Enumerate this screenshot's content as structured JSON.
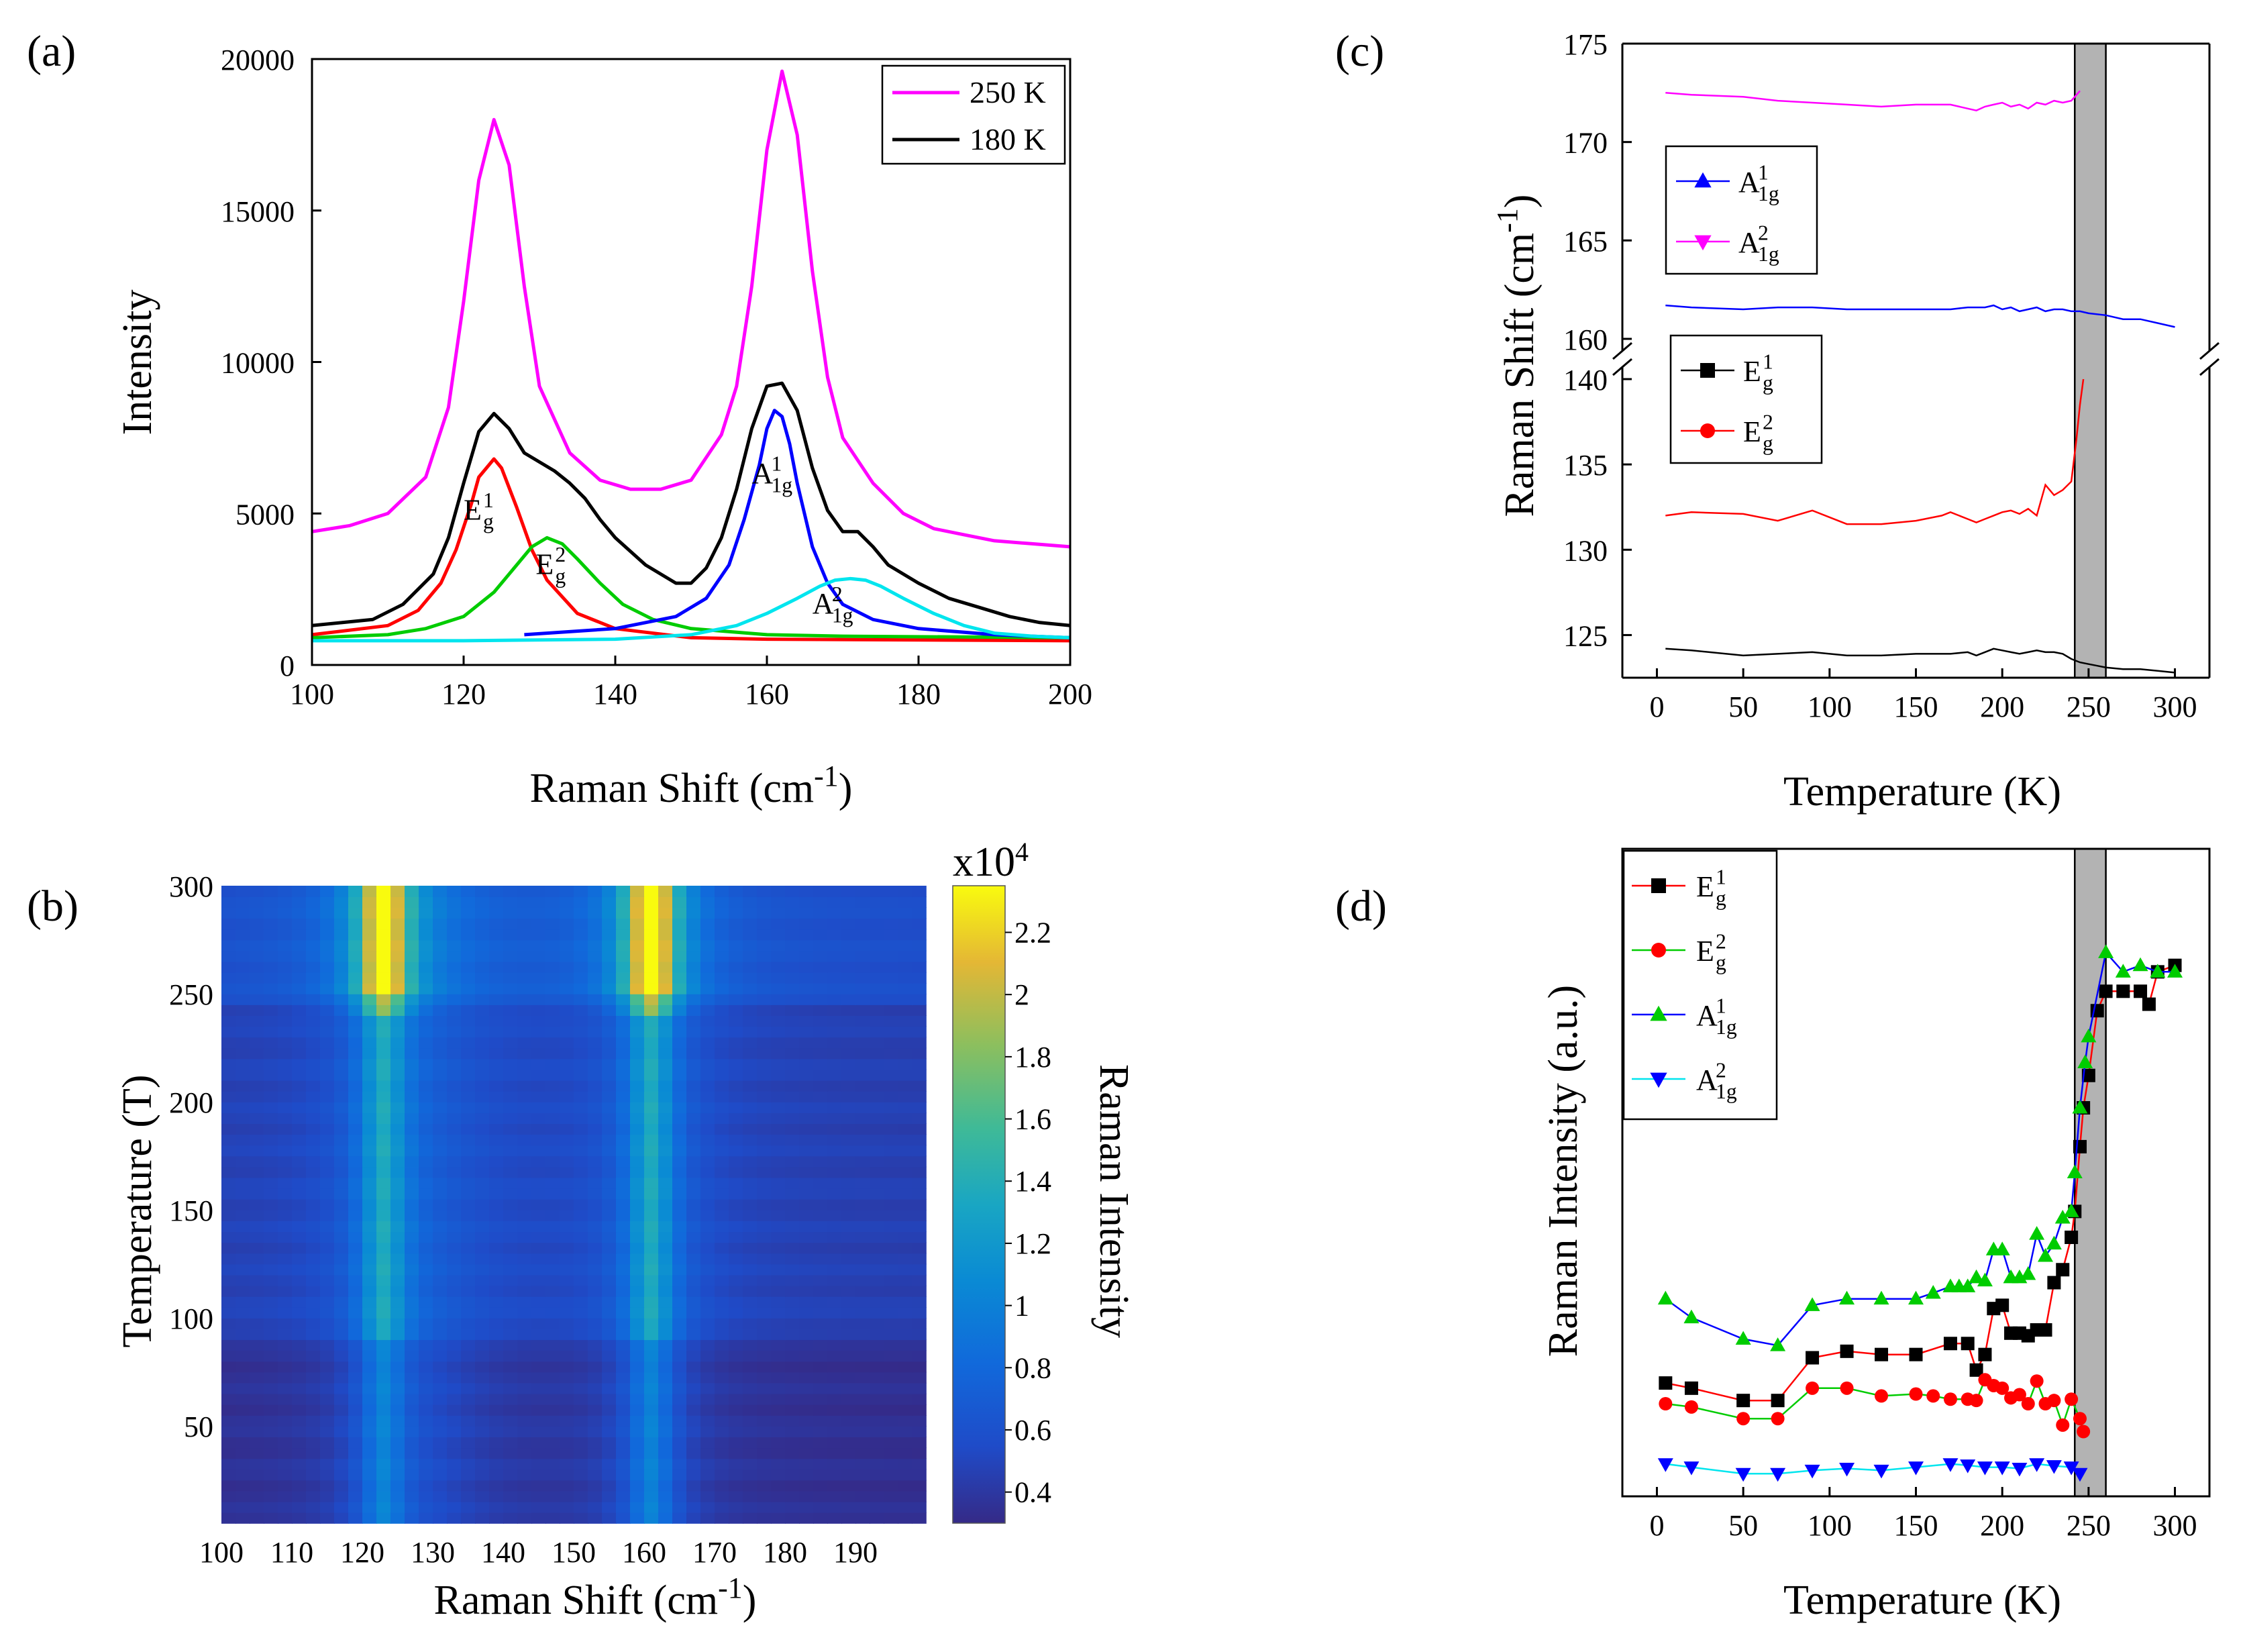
{
  "panels": {
    "a": "(a)",
    "b": "(b)",
    "c": "(c)",
    "d": "(d)"
  },
  "colors": {
    "k250": "#ff00ff",
    "k180": "#000000",
    "Eg1": "#ff0000",
    "Eg2": "#00cc00",
    "A1g1": "#0000ff",
    "A1g2": "#00e5ee",
    "band": "#b3b3b3"
  },
  "chart_data": [
    {
      "id": "a",
      "type": "line",
      "xlabel": "Raman Shift (cm-1)",
      "xlabel_main": "Raman Shift (cm",
      "xlabel_sup": "-1",
      "xlabel_close": ")",
      "ylabel": "Intensity",
      "xlim": [
        100,
        200
      ],
      "ylim": [
        0,
        20000
      ],
      "xticks": [
        100,
        120,
        140,
        160,
        180,
        200
      ],
      "yticks": [
        0,
        5000,
        10000,
        15000,
        20000
      ],
      "legend": [
        "250 K",
        "180 K"
      ],
      "series": [
        {
          "name": "250 K",
          "x": [
            100,
            105,
            110,
            115,
            118,
            120,
            122,
            124,
            126,
            128,
            130,
            134,
            138,
            142,
            146,
            150,
            154,
            156,
            158,
            160,
            162,
            164,
            166,
            168,
            170,
            174,
            178,
            182,
            186,
            190,
            195,
            200
          ],
          "y": [
            4400,
            4600,
            5000,
            6200,
            8500,
            12000,
            16000,
            18000,
            16500,
            12500,
            9200,
            7000,
            6100,
            5800,
            5800,
            6100,
            7600,
            9200,
            12500,
            17000,
            19600,
            17500,
            13000,
            9500,
            7500,
            6000,
            5000,
            4500,
            4300,
            4100,
            4000,
            3900
          ]
        },
        {
          "name": "180 K",
          "x": [
            100,
            104,
            108,
            112,
            116,
            118,
            120,
            122,
            124,
            126,
            128,
            130,
            132,
            134,
            136,
            138,
            140,
            144,
            148,
            150,
            152,
            154,
            156,
            158,
            160,
            162,
            164,
            166,
            168,
            170,
            172,
            174,
            176,
            180,
            184,
            188,
            192,
            196,
            200
          ],
          "y": [
            1300,
            1400,
            1500,
            2000,
            3000,
            4200,
            6000,
            7700,
            8300,
            7800,
            7000,
            6700,
            6400,
            6000,
            5500,
            4800,
            4200,
            3300,
            2700,
            2700,
            3200,
            4200,
            5800,
            7800,
            9200,
            9300,
            8400,
            6500,
            5100,
            4400,
            4400,
            3900,
            3300,
            2700,
            2200,
            1900,
            1600,
            1400,
            1300
          ]
        },
        {
          "name": "Eg1 fit",
          "x": [
            100,
            110,
            114,
            117,
            119,
            121,
            122,
            124,
            125,
            127,
            129,
            131,
            135,
            140,
            150,
            160,
            200
          ],
          "y": [
            1000,
            1300,
            1800,
            2700,
            3800,
            5300,
            6200,
            6800,
            6500,
            5200,
            3800,
            2800,
            1700,
            1200,
            900,
            850,
            800
          ]
        },
        {
          "name": "Eg2 fit",
          "x": [
            100,
            110,
            115,
            120,
            124,
            127,
            129,
            131,
            133,
            135,
            138,
            141,
            145,
            150,
            160,
            170,
            200
          ],
          "y": [
            900,
            1000,
            1200,
            1600,
            2400,
            3300,
            3900,
            4200,
            4000,
            3500,
            2700,
            2000,
            1500,
            1200,
            1000,
            950,
            900
          ]
        },
        {
          "name": "A1g1 fit",
          "x": [
            128,
            140,
            148,
            152,
            155,
            157,
            159,
            160,
            161,
            162,
            163,
            164,
            166,
            168,
            170,
            174,
            180,
            190,
            200
          ],
          "y": [
            1000,
            1200,
            1600,
            2200,
            3300,
            4800,
            6600,
            7800,
            8400,
            8200,
            7300,
            6000,
            3900,
            2700,
            2000,
            1500,
            1200,
            1000,
            900
          ]
        },
        {
          "name": "A1g2 fit",
          "x": [
            100,
            120,
            140,
            150,
            156,
            160,
            164,
            167,
            169,
            171,
            173,
            175,
            178,
            182,
            186,
            190,
            195,
            200
          ],
          "y": [
            800,
            800,
            850,
            1000,
            1300,
            1700,
            2200,
            2600,
            2800,
            2850,
            2800,
            2600,
            2200,
            1700,
            1300,
            1050,
            950,
            900
          ]
        }
      ],
      "annotations": [
        {
          "main": "E",
          "sup": "1",
          "sub": "g",
          "x": 120,
          "y": 4800
        },
        {
          "main": "E",
          "sup": "2",
          "sub": "g",
          "x": 129.5,
          "y": 3000
        },
        {
          "main": "A",
          "sup": "1",
          "sub": "1g",
          "x": 158,
          "y": 6000
        },
        {
          "main": "A",
          "sup": "2",
          "sub": "1g",
          "x": 166,
          "y": 1700
        }
      ]
    },
    {
      "id": "b",
      "type": "heatmap",
      "xlabel": "Raman Shift (cm-1)",
      "xlabel_main": "Raman Shift (cm",
      "xlabel_sup": "-1",
      "xlabel_close": ")",
      "ylabel": "Temperature (T)",
      "xlim": [
        100,
        200
      ],
      "ylim": [
        5,
        300
      ],
      "xticks": [
        100,
        110,
        120,
        130,
        140,
        150,
        160,
        170,
        180,
        190
      ],
      "yticks": [
        50,
        100,
        150,
        200,
        250,
        300
      ],
      "peaks": [
        123,
        161
      ],
      "colorbar": {
        "label": "Raman Intensity",
        "exponent_label": "x10",
        "exponent_sup": "4",
        "range": [
          0.3,
          2.35
        ],
        "ticks": [
          "0.4",
          "0.6",
          "0.8",
          "1",
          "1.2",
          "1.4",
          "1.6",
          "1.8",
          "2",
          "2.2"
        ]
      }
    },
    {
      "id": "c",
      "type": "scatter",
      "xlabel": "Temperature (K)",
      "ylabel": "Raman Shift (cm-1)",
      "ylabel_main": "Raman Shift (cm",
      "ylabel_sup": "-1",
      "ylabel_close": ")",
      "xlim": [
        -20,
        320
      ],
      "xticks": [
        0,
        50,
        100,
        150,
        200,
        250,
        300
      ],
      "ylim_upper": [
        160,
        175
      ],
      "yticks_upper": [
        160,
        165,
        170,
        175
      ],
      "ylim_lower": [
        122.5,
        140
      ],
      "yticks_lower": [
        125,
        130,
        135,
        140
      ],
      "band": [
        242,
        260
      ],
      "series": [
        {
          "name": "A1g1",
          "label_main": "A",
          "label_sup": "1",
          "label_sub": "1g",
          "marker": "triangle-up",
          "x": [
            5,
            20,
            50,
            70,
            90,
            110,
            130,
            150,
            170,
            180,
            190,
            195,
            200,
            205,
            210,
            215,
            220,
            225,
            230,
            235,
            240,
            245,
            250,
            260,
            270,
            280,
            290,
            300
          ],
          "y": [
            161.7,
            161.6,
            161.5,
            161.6,
            161.6,
            161.5,
            161.5,
            161.5,
            161.5,
            161.6,
            161.6,
            161.7,
            161.5,
            161.6,
            161.4,
            161.5,
            161.6,
            161.4,
            161.5,
            161.5,
            161.4,
            161.4,
            161.3,
            161.2,
            161.0,
            161.0,
            160.8,
            160.6
          ]
        },
        {
          "name": "A1g2",
          "label_main": "A",
          "label_sup": "2",
          "label_sub": "1g",
          "marker": "triangle-down",
          "x": [
            5,
            20,
            50,
            70,
            90,
            110,
            130,
            150,
            170,
            180,
            185,
            190,
            195,
            200,
            205,
            210,
            215,
            220,
            225,
            230,
            235,
            240,
            245
          ],
          "y": [
            172.5,
            172.4,
            172.3,
            172.1,
            172.0,
            171.9,
            171.8,
            171.9,
            171.9,
            171.7,
            171.6,
            171.8,
            171.9,
            172.0,
            171.8,
            171.9,
            171.7,
            172.0,
            171.9,
            172.1,
            172.0,
            172.1,
            172.6
          ]
        },
        {
          "name": "Eg1",
          "label_main": "E",
          "label_sup": "1",
          "label_sub": "g",
          "marker": "square",
          "x": [
            5,
            20,
            50,
            70,
            90,
            110,
            130,
            150,
            160,
            170,
            180,
            185,
            190,
            195,
            200,
            205,
            210,
            215,
            220,
            225,
            230,
            235,
            240,
            245,
            250,
            255,
            260,
            270,
            280,
            290,
            300
          ],
          "y": [
            124.2,
            124.1,
            123.8,
            123.9,
            124.0,
            123.8,
            123.8,
            123.9,
            123.9,
            123.9,
            124.0,
            123.8,
            124.0,
            124.2,
            124.1,
            124.0,
            123.9,
            124.0,
            124.1,
            124.0,
            124.0,
            123.9,
            123.6,
            123.4,
            123.3,
            123.2,
            123.1,
            123.0,
            123.0,
            122.9,
            122.8
          ]
        },
        {
          "name": "Eg2",
          "label_main": "E",
          "label_sup": "2",
          "label_sub": "g",
          "marker": "circle",
          "x": [
            5,
            20,
            50,
            70,
            90,
            110,
            130,
            150,
            165,
            170,
            175,
            180,
            185,
            190,
            195,
            200,
            205,
            210,
            215,
            220,
            225,
            230,
            235,
            240,
            243,
            245,
            247
          ],
          "y": [
            132.0,
            132.2,
            132.1,
            131.7,
            132.3,
            131.5,
            131.5,
            131.7,
            132.0,
            132.2,
            132.0,
            131.8,
            131.6,
            131.8,
            132.0,
            132.2,
            132.3,
            132.1,
            132.4,
            132.0,
            133.8,
            133.2,
            133.5,
            134.0,
            136.5,
            138.5,
            140.0
          ]
        }
      ]
    },
    {
      "id": "d",
      "type": "scatter",
      "xlabel": "Temperature (K)",
      "ylabel": "Raman Intensity (a.u.)",
      "xlim": [
        -20,
        320
      ],
      "xticks": [
        0,
        50,
        100,
        150,
        200,
        250,
        300
      ],
      "ylim": [
        0,
        1
      ],
      "band": [
        242,
        260
      ],
      "series": [
        {
          "name": "Eg1",
          "label_main": "E",
          "label_sup": "1",
          "label_sub": "g",
          "marker": "square",
          "x": [
            5,
            20,
            50,
            70,
            90,
            110,
            130,
            150,
            170,
            180,
            185,
            190,
            195,
            200,
            205,
            210,
            215,
            220,
            225,
            230,
            235,
            240,
            242,
            245,
            247,
            250,
            255,
            260,
            270,
            280,
            285,
            290,
            300
          ],
          "y": [
            0.175,
            0.167,
            0.148,
            0.148,
            0.214,
            0.224,
            0.219,
            0.219,
            0.236,
            0.236,
            0.195,
            0.219,
            0.29,
            0.295,
            0.252,
            0.252,
            0.248,
            0.257,
            0.257,
            0.33,
            0.35,
            0.4,
            0.44,
            0.54,
            0.6,
            0.65,
            0.75,
            0.78,
            0.78,
            0.78,
            0.76,
            0.81,
            0.82
          ]
        },
        {
          "name": "Eg2",
          "label_main": "E",
          "label_sup": "2",
          "label_sub": "g",
          "marker": "circle",
          "x": [
            5,
            20,
            50,
            70,
            90,
            110,
            130,
            150,
            160,
            170,
            180,
            185,
            190,
            195,
            200,
            205,
            210,
            215,
            220,
            225,
            230,
            235,
            240,
            245,
            247
          ],
          "y": [
            0.143,
            0.138,
            0.12,
            0.12,
            0.167,
            0.167,
            0.155,
            0.158,
            0.155,
            0.15,
            0.15,
            0.148,
            0.18,
            0.171,
            0.167,
            0.152,
            0.157,
            0.143,
            0.178,
            0.143,
            0.148,
            0.11,
            0.15,
            0.12,
            0.1
          ]
        },
        {
          "name": "A1g1",
          "label_main": "A",
          "label_sup": "1",
          "label_sub": "1g",
          "marker": "triangle-up",
          "x": [
            5,
            20,
            50,
            70,
            90,
            110,
            130,
            150,
            160,
            170,
            175,
            180,
            185,
            190,
            195,
            200,
            205,
            210,
            215,
            220,
            225,
            230,
            235,
            240,
            242,
            245,
            248,
            250,
            260,
            270,
            280,
            290,
            300
          ],
          "y": [
            0.305,
            0.276,
            0.243,
            0.233,
            0.295,
            0.305,
            0.305,
            0.305,
            0.314,
            0.324,
            0.324,
            0.324,
            0.338,
            0.333,
            0.381,
            0.381,
            0.338,
            0.338,
            0.343,
            0.405,
            0.371,
            0.39,
            0.43,
            0.44,
            0.5,
            0.6,
            0.67,
            0.71,
            0.84,
            0.81,
            0.82,
            0.81,
            0.81
          ]
        },
        {
          "name": "A1g2",
          "label_main": "A",
          "label_sup": "2",
          "label_sub": "1g",
          "marker": "triangle-down",
          "x": [
            5,
            20,
            50,
            70,
            90,
            110,
            130,
            150,
            170,
            180,
            190,
            200,
            210,
            220,
            230,
            240,
            245
          ],
          "y": [
            0.05,
            0.045,
            0.035,
            0.035,
            0.04,
            0.043,
            0.04,
            0.045,
            0.05,
            0.048,
            0.045,
            0.045,
            0.043,
            0.05,
            0.047,
            0.045,
            0.035
          ]
        }
      ]
    }
  ]
}
